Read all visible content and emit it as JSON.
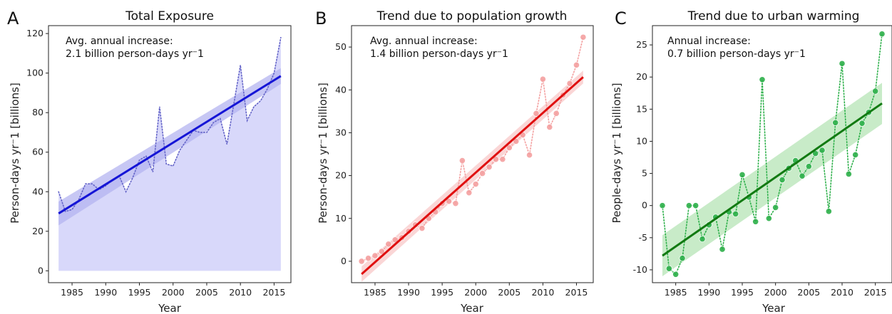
{
  "chart_data": [
    {
      "panel": "A",
      "title": "Total Exposure",
      "type": "area",
      "xlabel": "Year",
      "ylabel": "Person-days yr⁻1 [billions]",
      "xlim": [
        1981.5,
        2017.5
      ],
      "ylim": [
        -6,
        124
      ],
      "xticks": [
        1985,
        1990,
        1995,
        2000,
        2005,
        2010,
        2015
      ],
      "yticks": [
        0,
        20,
        40,
        60,
        80,
        100,
        120
      ],
      "annotation_line1": "Avg. annual increase:",
      "annotation_line2": "2.1 billion person-days yr⁻1",
      "series": [
        {
          "style": "dotted-line-with-filled-area",
          "color": "#6464c8",
          "fill": "#d6d6fa",
          "x": [
            1983,
            1984,
            1985,
            1986,
            1987,
            1988,
            1989,
            1990,
            1991,
            1992,
            1993,
            1994,
            1995,
            1996,
            1997,
            1998,
            1999,
            2000,
            2001,
            2002,
            2003,
            2004,
            2005,
            2006,
            2007,
            2008,
            2009,
            2010,
            2011,
            2012,
            2013,
            2014,
            2015,
            2016
          ],
          "values": [
            40,
            30,
            31,
            36,
            44,
            44,
            41,
            43,
            46,
            48,
            40,
            47,
            56,
            58,
            50,
            83,
            54,
            53,
            61,
            66,
            71,
            70,
            70,
            75,
            77,
            64,
            84,
            104,
            76,
            83,
            86,
            92,
            100,
            118
          ]
        }
      ],
      "trend": {
        "color": "#1515d6",
        "band_color": "#b4b4f0",
        "x": [
          1983,
          2016
        ],
        "values": [
          29,
          98.5
        ],
        "band_halfwidth": [
          6,
          4
        ]
      }
    },
    {
      "panel": "B",
      "title": "Trend due to population growth",
      "type": "scatter",
      "xlabel": "Year",
      "ylabel": "Person-days yr⁻1  [billions]",
      "xlim": [
        1981.5,
        2017.5
      ],
      "ylim": [
        -5,
        55
      ],
      "xticks": [
        1985,
        1990,
        1995,
        2000,
        2005,
        2010,
        2015
      ],
      "yticks": [
        0,
        10,
        20,
        30,
        40,
        50
      ],
      "annotation_line1": "Avg. annual increase:",
      "annotation_line2": "1.4 billion person-days yr⁻1",
      "series": [
        {
          "style": "dotted-line-with-markers",
          "color": "#f4a0a0",
          "x": [
            1983,
            1984,
            1985,
            1986,
            1987,
            1988,
            1989,
            1990,
            1991,
            1992,
            1993,
            1994,
            1995,
            1996,
            1997,
            1998,
            1999,
            2000,
            2001,
            2002,
            2003,
            2004,
            2005,
            2006,
            2007,
            2008,
            2009,
            2010,
            2011,
            2012,
            2013,
            2014,
            2015,
            2016
          ],
          "values": [
            0,
            0.7,
            1.3,
            2.3,
            4,
            5,
            5.5,
            7,
            8.5,
            7.7,
            10,
            11.5,
            13.5,
            14,
            13.5,
            23.5,
            16,
            18,
            20.5,
            22,
            23.8,
            23.8,
            26.5,
            28,
            29.5,
            24.8,
            34.5,
            42.5,
            31.3,
            34.5,
            38.8,
            41.5,
            45.8,
            52.3
          ]
        }
      ],
      "trend": {
        "color": "#e01010",
        "band_color": "#f8c8c8",
        "x": [
          1983,
          2016
        ],
        "values": [
          -3,
          43
        ],
        "band_halfwidth": [
          1.8,
          1.5
        ]
      }
    },
    {
      "panel": "C",
      "title": "Trend due to urban warming",
      "type": "scatter",
      "xlabel": "Year",
      "ylabel": "People-days yr⁻1 [billions]",
      "xlim": [
        1981.5,
        2017.5
      ],
      "ylim": [
        -12,
        28
      ],
      "xticks": [
        1985,
        1990,
        1995,
        2000,
        2005,
        2010,
        2015
      ],
      "yticks": [
        -10,
        -5,
        0,
        5,
        10,
        15,
        20,
        25
      ],
      "annotation_line1": "Annual increase:",
      "annotation_line2": "0.7 billion person-days yr⁻1",
      "series": [
        {
          "style": "dotted-line-with-markers",
          "color": "#2db04a",
          "x": [
            1983,
            1984,
            1985,
            1986,
            1987,
            1988,
            1989,
            1990,
            1991,
            1992,
            1993,
            1994,
            1995,
            1996,
            1997,
            1998,
            1999,
            2000,
            2001,
            2002,
            2003,
            2004,
            2005,
            2006,
            2007,
            2008,
            2009,
            2010,
            2011,
            2012,
            2013,
            2014,
            2015,
            2016
          ],
          "values": [
            0,
            -9.8,
            -10.7,
            -8.2,
            0,
            0,
            -5.2,
            -3,
            -1.8,
            -6.8,
            -1,
            -1.3,
            4.8,
            1.3,
            -2.5,
            19.6,
            -2,
            -0.3,
            4,
            5.8,
            7,
            4.6,
            6.1,
            8.1,
            8.6,
            -0.9,
            12.9,
            22.1,
            4.9,
            7.9,
            12.8,
            14.5,
            17.8,
            26.7
          ]
        }
      ],
      "trend": {
        "color": "#127a12",
        "band_color": "#b6e4b6",
        "x": [
          1983,
          2016
        ],
        "values": [
          -7.8,
          15.9
        ],
        "band_halfwidth": [
          3.2,
          3.2
        ]
      }
    }
  ]
}
